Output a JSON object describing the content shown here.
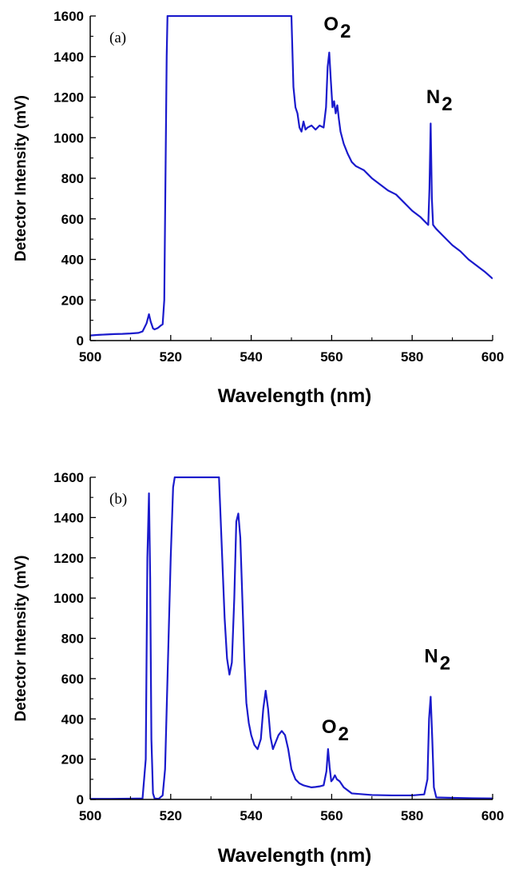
{
  "chart_data": [
    {
      "type": "line",
      "panel_label": "(a)",
      "xlabel": "Wavelength (nm)",
      "ylabel": "Detector Intensity (mV)",
      "xlim": [
        500,
        600
      ],
      "ylim": [
        0,
        1600
      ],
      "xticks": [
        500,
        520,
        540,
        560,
        580,
        600
      ],
      "yticks": [
        0,
        200,
        400,
        600,
        800,
        1000,
        1200,
        1400,
        1600
      ],
      "line_color": "#1a1acc",
      "annotations": [
        {
          "text": "O",
          "sub": "2",
          "x": 560,
          "y": 1530
        },
        {
          "text": "N",
          "sub": "2",
          "x": 585.5,
          "y": 1170
        }
      ],
      "series": [
        {
          "x": [
            500,
            502,
            504,
            506,
            508,
            510,
            512,
            513,
            514,
            514.6,
            515,
            515.6,
            516,
            516.6,
            517,
            517.6,
            518,
            518.4,
            518.7,
            519,
            519.2,
            550,
            550.5,
            551,
            551.5,
            552,
            552.5,
            553,
            553.5,
            554,
            555,
            556,
            557,
            558,
            558.6,
            559,
            559.4,
            559.8,
            560.2,
            560.6,
            561,
            561.4,
            561.8,
            562.2,
            563,
            564,
            565,
            566,
            567,
            568,
            569,
            570,
            572,
            574,
            576,
            578,
            580,
            582,
            583,
            584,
            584.3,
            584.6,
            584.9,
            585.2,
            585.6,
            586,
            588,
            590,
            592,
            594,
            596,
            598,
            600
          ],
          "y": [
            25,
            28,
            30,
            32,
            33,
            35,
            38,
            45,
            85,
            130,
            95,
            60,
            55,
            60,
            65,
            75,
            80,
            200,
            800,
            1400,
            1600,
            1600,
            1250,
            1150,
            1120,
            1050,
            1030,
            1080,
            1040,
            1050,
            1060,
            1040,
            1060,
            1050,
            1150,
            1350,
            1420,
            1280,
            1150,
            1180,
            1120,
            1160,
            1090,
            1030,
            970,
            920,
            880,
            860,
            850,
            840,
            820,
            800,
            770,
            740,
            720,
            680,
            640,
            610,
            590,
            570,
            750,
            1070,
            700,
            570,
            560,
            550,
            510,
            470,
            440,
            400,
            370,
            340,
            305
          ]
        }
      ]
    },
    {
      "type": "line",
      "panel_label": "(b)",
      "xlabel": "Wavelength (nm)",
      "ylabel": "Detector Intensity (mV)",
      "xlim": [
        500,
        600
      ],
      "ylim": [
        0,
        1600
      ],
      "xticks": [
        500,
        520,
        540,
        560,
        580,
        600
      ],
      "yticks": [
        0,
        200,
        400,
        600,
        800,
        1000,
        1200,
        1400,
        1600
      ],
      "line_color": "#1a1acc",
      "annotations": [
        {
          "text": "O",
          "sub": "2",
          "x": 559.5,
          "y": 330
        },
        {
          "text": "N",
          "sub": "2",
          "x": 585,
          "y": 680
        }
      ],
      "series": [
        {
          "x": [
            500,
            505,
            510,
            513,
            513.8,
            514.2,
            514.6,
            514.9,
            515.2,
            515.6,
            516,
            517,
            518,
            518.6,
            519.2,
            520,
            520.6,
            521,
            521.3,
            532,
            532.3,
            532.8,
            533.4,
            534,
            534.6,
            535.2,
            535.8,
            536.3,
            536.8,
            537.3,
            537.8,
            538.3,
            538.8,
            539.4,
            540,
            540.8,
            541.6,
            542.4,
            543,
            543.6,
            544.2,
            544.8,
            545.4,
            546,
            546.8,
            547.6,
            548.4,
            549.2,
            550,
            551,
            552,
            553,
            554,
            555,
            556,
            557,
            558,
            558.7,
            559.1,
            559.5,
            559.9,
            560.3,
            560.8,
            561.3,
            562,
            563,
            565,
            570,
            575,
            580,
            583,
            583.8,
            584.2,
            584.6,
            585,
            585.4,
            586,
            590,
            595,
            600
          ],
          "y": [
            3,
            3,
            4,
            5,
            200,
            1200,
            1520,
            1100,
            300,
            30,
            5,
            3,
            20,
            150,
            600,
            1200,
            1550,
            1600,
            1600,
            1600,
            1450,
            1200,
            900,
            700,
            620,
            680,
            1000,
            1380,
            1420,
            1300,
            1000,
            700,
            480,
            380,
            320,
            270,
            250,
            300,
            450,
            540,
            450,
            310,
            250,
            280,
            320,
            340,
            320,
            250,
            150,
            100,
            80,
            70,
            65,
            60,
            62,
            65,
            70,
            140,
            250,
            160,
            90,
            100,
            120,
            100,
            90,
            60,
            30,
            22,
            20,
            20,
            25,
            100,
            400,
            510,
            300,
            60,
            10,
            8,
            6,
            5
          ]
        }
      ]
    }
  ]
}
